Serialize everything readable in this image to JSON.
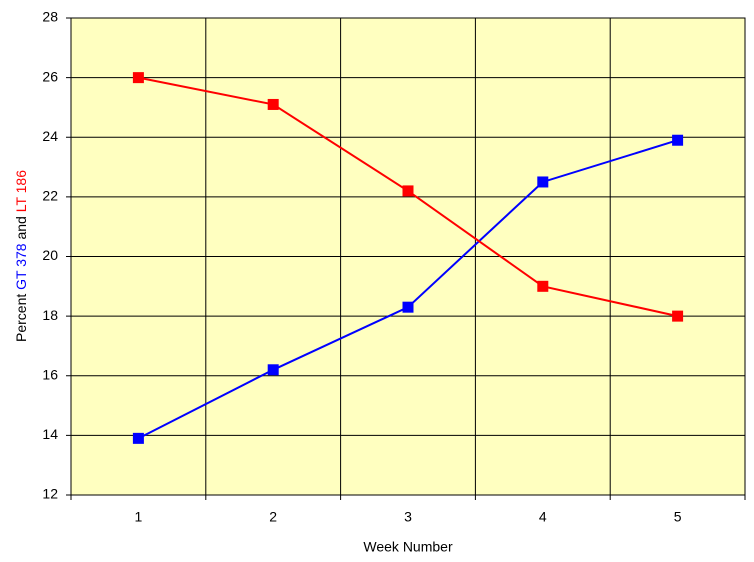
{
  "chart_data": {
    "type": "line",
    "x_label": "Week Number",
    "y_label_parts": [
      "Percent",
      "and"
    ],
    "categories": [
      "1",
      "2",
      "3",
      "4",
      "5"
    ],
    "series": [
      {
        "name": "GT 378",
        "color": "#0000ff",
        "values": [
          13.9,
          16.2,
          18.3,
          22.5,
          23.9
        ]
      },
      {
        "name": "LT 186",
        "color": "#ff0000",
        "values": [
          26.0,
          25.1,
          22.2,
          19.0,
          18.0
        ]
      }
    ],
    "ylim": [
      12,
      28
    ],
    "yticks": [
      12,
      14,
      16,
      18,
      20,
      22,
      24,
      26,
      28
    ],
    "grid": true
  }
}
